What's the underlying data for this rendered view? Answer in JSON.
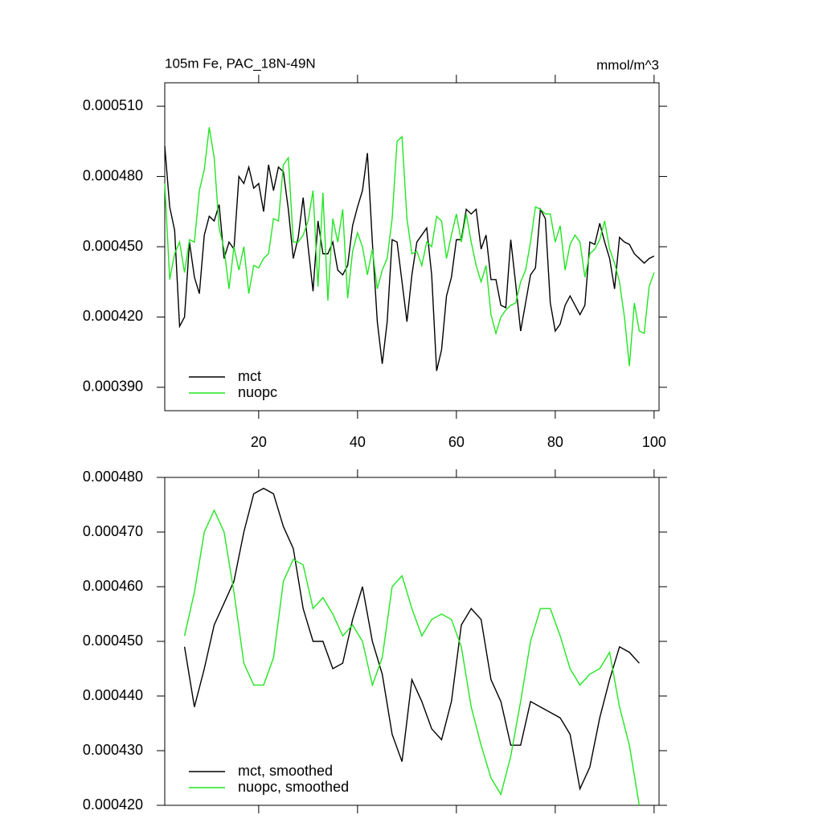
{
  "chart_data": [
    {
      "type": "line",
      "title": "105m Fe, PAC_18N-49N",
      "units": "mmol/m^3",
      "x": [
        1,
        2,
        3,
        4,
        5,
        6,
        7,
        8,
        9,
        10,
        11,
        12,
        13,
        14,
        15,
        16,
        17,
        18,
        19,
        20,
        21,
        22,
        23,
        24,
        25,
        26,
        27,
        28,
        29,
        30,
        31,
        32,
        33,
        34,
        35,
        36,
        37,
        38,
        39,
        40,
        41,
        42,
        43,
        44,
        45,
        46,
        47,
        48,
        49,
        50,
        51,
        52,
        53,
        54,
        55,
        56,
        57,
        58,
        59,
        60,
        61,
        62,
        63,
        64,
        65,
        66,
        67,
        68,
        69,
        70,
        71,
        72,
        73,
        74,
        75,
        76,
        77,
        78,
        79,
        80,
        81,
        82,
        83,
        84,
        85,
        86,
        87,
        88,
        89,
        90,
        91,
        92,
        93,
        94,
        95,
        96,
        97,
        98,
        99,
        100
      ],
      "series": [
        {
          "name": "mct",
          "color": "#000000",
          "values": [
            0.000493,
            0.000467,
            0.000457,
            0.000416,
            0.00042,
            0.000452,
            0.000437,
            0.00043,
            0.000455,
            0.000463,
            0.000461,
            0.000468,
            0.000445,
            0.000452,
            0.000449,
            0.00048,
            0.000477,
            0.000484,
            0.000475,
            0.000477,
            0.000465,
            0.000485,
            0.000474,
            0.000484,
            0.000482,
            0.000466,
            0.000445,
            0.000454,
            0.000471,
            0.00045,
            0.000431,
            0.000461,
            0.000447,
            0.000447,
            0.000452,
            0.00044,
            0.000438,
            0.000442,
            0.000459,
            0.000467,
            0.000474,
            0.00049,
            0.000452,
            0.000418,
            0.0004,
            0.000418,
            0.000453,
            0.000452,
            0.000435,
            0.000418,
            0.000438,
            0.000452,
            0.000455,
            0.000458,
            0.000438,
            0.000397,
            0.000406,
            0.000429,
            0.000437,
            0.000453,
            0.000453,
            0.000466,
            0.000464,
            0.000466,
            0.000449,
            0.000455,
            0.000436,
            0.000436,
            0.000425,
            0.000424,
            0.000453,
            0.000434,
            0.000414,
            0.000426,
            0.000438,
            0.000441,
            0.000466,
            0.000462,
            0.000426,
            0.000414,
            0.000417,
            0.000425,
            0.000429,
            0.000425,
            0.000421,
            0.000425,
            0.000452,
            0.000451,
            0.00046,
            0.000452,
            0.000445,
            0.000432,
            0.000454,
            0.000452,
            0.000451,
            0.000447,
            0.000445,
            0.000443,
            0.000445,
            0.000446
          ]
        },
        {
          "name": "nuopc",
          "color": "#22e622",
          "values": [
            0.000477,
            0.000436,
            0.000447,
            0.000452,
            0.000439,
            0.000453,
            0.000452,
            0.000474,
            0.000483,
            0.000501,
            0.000488,
            0.000458,
            0.000449,
            0.000432,
            0.00045,
            0.00044,
            0.00045,
            0.00043,
            0.000442,
            0.000441,
            0.000445,
            0.000447,
            0.000462,
            0.000461,
            0.000485,
            0.000488,
            0.000452,
            0.000452,
            0.000455,
            0.000461,
            0.000474,
            0.000433,
            0.000473,
            0.000427,
            0.000462,
            0.000452,
            0.000466,
            0.000428,
            0.000448,
            0.000456,
            0.00045,
            0.000438,
            0.000449,
            0.000432,
            0.00044,
            0.000445,
            0.000462,
            0.000495,
            0.000497,
            0.000462,
            0.000447,
            0.000448,
            0.000442,
            0.000452,
            0.00045,
            0.000463,
            0.000461,
            0.000445,
            0.000455,
            0.000464,
            0.000452,
            0.000464,
            0.000452,
            0.000442,
            0.000435,
            0.000442,
            0.000421,
            0.000413,
            0.00042,
            0.000423,
            0.000425,
            0.000426,
            0.000435,
            0.00044,
            0.000452,
            0.000467,
            0.000466,
            0.000464,
            0.000464,
            0.000452,
            0.000459,
            0.00044,
            0.000451,
            0.000455,
            0.000452,
            0.000437,
            0.000447,
            0.000449,
            0.000453,
            0.000461,
            0.000449,
            0.000443,
            0.000435,
            0.00042,
            0.000399,
            0.000426,
            0.000414,
            0.000413,
            0.000433,
            0.000439
          ]
        }
      ],
      "xlim": [
        1,
        101
      ],
      "ylim": [
        0.00038,
        0.00052
      ],
      "xticks": [
        20,
        40,
        60,
        80,
        100
      ],
      "yticks": [
        {
          "value": 0.00039,
          "label": "0.000390"
        },
        {
          "value": 0.00042,
          "label": "0.000420"
        },
        {
          "value": 0.00045,
          "label": "0.000450"
        },
        {
          "value": 0.00048,
          "label": "0.000480"
        },
        {
          "value": 0.00051,
          "label": "0.000510"
        }
      ],
      "legend": "lower left"
    },
    {
      "type": "line",
      "x": [
        5,
        7,
        9,
        11,
        13,
        15,
        17,
        19,
        21,
        23,
        25,
        27,
        29,
        31,
        33,
        35,
        37,
        39,
        41,
        43,
        45,
        47,
        49,
        51,
        53,
        55,
        57,
        59,
        61,
        63,
        65,
        67,
        69,
        71,
        73,
        75,
        77,
        79,
        81,
        83,
        85,
        87,
        89,
        91,
        93,
        95,
        97
      ],
      "series": [
        {
          "name": "mct, smoothed",
          "color": "#000000",
          "values": [
            0.000449,
            0.000438,
            0.000445,
            0.000453,
            0.000457,
            0.000461,
            0.00047,
            0.000477,
            0.000478,
            0.000477,
            0.000471,
            0.000467,
            0.000456,
            0.00045,
            0.00045,
            0.000445,
            0.000446,
            0.000454,
            0.00046,
            0.00045,
            0.000444,
            0.000433,
            0.000428,
            0.000443,
            0.000439,
            0.000434,
            0.000432,
            0.000439,
            0.000453,
            0.000456,
            0.000454,
            0.000443,
            0.000439,
            0.000431,
            0.000431,
            0.000439,
            0.000438,
            0.000437,
            0.000436,
            0.000433,
            0.000423,
            0.000427,
            0.000436,
            0.000443,
            0.000449,
            0.000448,
            0.000446
          ]
        },
        {
          "name": "nuopc, smoothed",
          "color": "#22e622",
          "values": [
            0.000451,
            0.000459,
            0.00047,
            0.000474,
            0.00047,
            0.000459,
            0.000446,
            0.000442,
            0.000442,
            0.000447,
            0.000461,
            0.000465,
            0.000464,
            0.000456,
            0.000458,
            0.000455,
            0.000451,
            0.000453,
            0.00045,
            0.000442,
            0.000447,
            0.00046,
            0.000462,
            0.000456,
            0.000451,
            0.000454,
            0.000455,
            0.000454,
            0.000449,
            0.000438,
            0.000431,
            0.000425,
            0.000422,
            0.000429,
            0.000439,
            0.00045,
            0.000456,
            0.000456,
            0.000451,
            0.000445,
            0.000442,
            0.000444,
            0.000445,
            0.000448,
            0.000438,
            0.000431,
            0.00042
          ]
        }
      ],
      "xlim": [
        1,
        101
      ],
      "ylim": [
        0.00042,
        0.00048
      ],
      "yticks": [
        {
          "value": 0.00042,
          "label": "0.000420"
        },
        {
          "value": 0.00043,
          "label": "0.000430"
        },
        {
          "value": 0.00044,
          "label": "0.000440"
        },
        {
          "value": 0.00045,
          "label": "0.000450"
        },
        {
          "value": 0.00046,
          "label": "0.000460"
        },
        {
          "value": 0.00047,
          "label": "0.000470"
        },
        {
          "value": 0.00048,
          "label": "0.000480"
        }
      ],
      "legend": "lower left"
    }
  ]
}
